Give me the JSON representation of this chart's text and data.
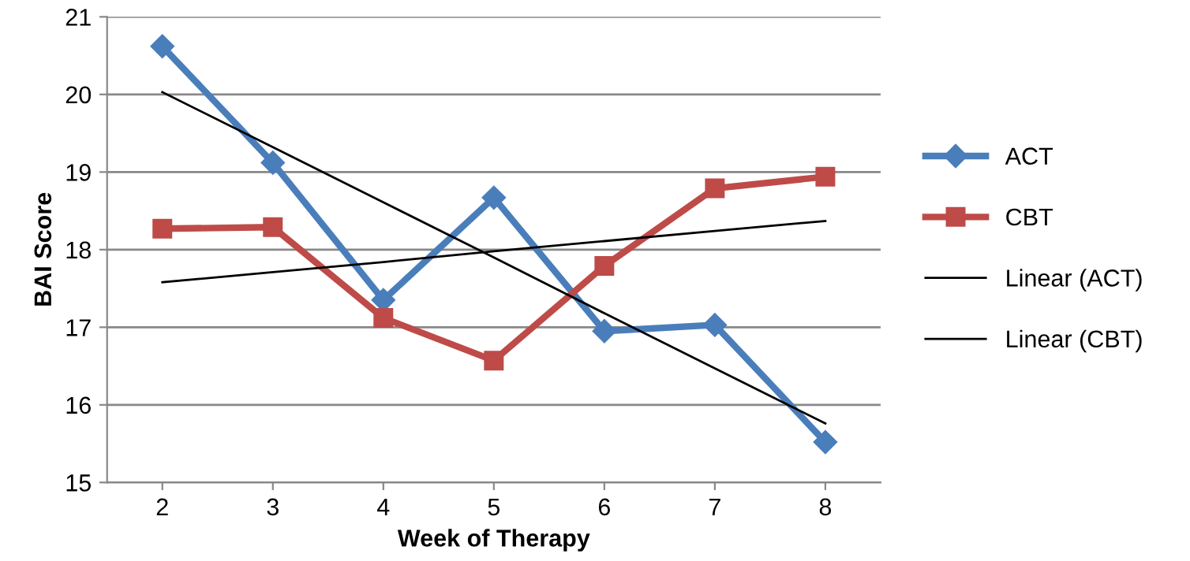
{
  "chart_data": {
    "type": "line",
    "xlabel": "Week of Therapy",
    "ylabel": "BAI Score",
    "x": [
      2,
      3,
      4,
      5,
      6,
      7,
      8
    ],
    "series": [
      {
        "name": "ACT",
        "color": "#4a7ebb",
        "marker": "diamond",
        "values": [
          20.62,
          19.12,
          17.35,
          18.67,
          16.95,
          17.03,
          15.52
        ]
      },
      {
        "name": "CBT",
        "color": "#be4b48",
        "marker": "square",
        "values": [
          18.27,
          18.29,
          17.12,
          16.57,
          17.79,
          18.79,
          18.94
        ]
      },
      {
        "name": "Linear (ACT)",
        "color": "#000000",
        "marker": "none",
        "values": [
          20.03,
          19.32,
          18.61,
          17.9,
          17.18,
          16.47,
          15.76
        ]
      },
      {
        "name": "Linear (CBT)",
        "color": "#000000",
        "marker": "none",
        "values": [
          17.58,
          17.71,
          17.84,
          17.98,
          18.11,
          18.24,
          18.37
        ]
      }
    ],
    "xlim": [
      1.5,
      8.5
    ],
    "xticks": [
      2,
      3,
      4,
      5,
      6,
      7,
      8
    ],
    "ylim": [
      15,
      21
    ],
    "yticks": [
      15,
      16,
      17,
      18,
      19,
      20,
      21
    ],
    "grid": "y",
    "legend": "right",
    "line_style": "solid"
  }
}
